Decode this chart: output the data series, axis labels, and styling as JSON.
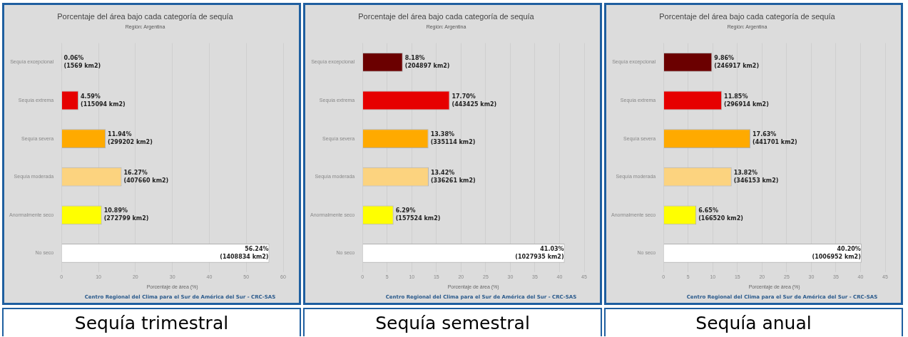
{
  "chart_data": [
    {
      "type": "bar",
      "orientation": "horizontal",
      "title": "Porcentaje del área bajo cada categoría de sequía",
      "subtitle": "Región: Argentina",
      "xlabel": "Porcentaje de área (%)",
      "categories": [
        "Sequía excepcional",
        "Sequía extrema",
        "Sequía severa",
        "Sequía moderada",
        "Anormalmente seco",
        "No seco"
      ],
      "values": [
        0.06,
        4.59,
        11.94,
        16.27,
        10.89,
        56.24
      ],
      "colors": [
        "#6b0000",
        "#e60000",
        "#ffaa00",
        "#fcd37f",
        "#ffff00",
        "#ffffff"
      ],
      "value_labels": [
        "0.06%\n(1569 km2)",
        "4.59%\n(115094 km2)",
        "11.94%\n(299202 km2)",
        "16.27%\n(407660 km2)",
        "10.89%\n(272799 km2)",
        "56.24%\n(1408834 km2)"
      ],
      "xlim": [
        0,
        60
      ],
      "xticks": [
        0,
        10,
        20,
        30,
        40,
        50,
        60
      ],
      "grid": "x",
      "legend": false,
      "annotations": [
        "Centro Regional del Clima para el Sur de América del Sur - CRC-SAS",
        "Sequía trimestral"
      ]
    },
    {
      "type": "bar",
      "orientation": "horizontal",
      "title": "Porcentaje del área bajo cada categoría de sequía",
      "subtitle": "Región: Argentina",
      "xlabel": "Porcentaje de área (%)",
      "categories": [
        "Sequía excepcional",
        "Sequía extrema",
        "Sequía severa",
        "Sequía moderada",
        "Anormalmente seco",
        "No seco"
      ],
      "values": [
        8.18,
        17.7,
        13.38,
        13.42,
        6.29,
        41.03
      ],
      "colors": [
        "#6b0000",
        "#e60000",
        "#ffaa00",
        "#fcd37f",
        "#ffff00",
        "#ffffff"
      ],
      "value_labels": [
        "8.18%\n(204897 km2)",
        "17.70%\n(443425 km2)",
        "13.38%\n(335114 km2)",
        "13.42%\n(336261 km2)",
        "6.29%\n(157524 km2)",
        "41.03%\n(1027935 km2)"
      ],
      "xlim": [
        0,
        45
      ],
      "xticks": [
        0,
        5,
        10,
        15,
        20,
        25,
        30,
        35,
        40,
        45
      ],
      "grid": "x",
      "legend": false,
      "annotations": [
        "Centro Regional del Clima para el Sur de América del Sur - CRC-SAS",
        "Sequía semestral"
      ]
    },
    {
      "type": "bar",
      "orientation": "horizontal",
      "title": "Porcentaje del área bajo cada categoría de sequía",
      "subtitle": "Región: Argentina",
      "xlabel": "Porcentaje de área (%)",
      "categories": [
        "Sequía excepcional",
        "Sequía extrema",
        "Sequía severa",
        "Sequía moderada",
        "Anormalmente seco",
        "No seco"
      ],
      "values": [
        9.86,
        11.85,
        17.63,
        13.82,
        6.65,
        40.2
      ],
      "colors": [
        "#6b0000",
        "#e60000",
        "#ffaa00",
        "#fcd37f",
        "#ffff00",
        "#ffffff"
      ],
      "value_labels": [
        "9.86%\n(246917 km2)",
        "11.85%\n(296914 km2)",
        "17.63%\n(441701 km2)",
        "13.82%\n(346153 km2)",
        "6.65%\n(166520 km2)",
        "40.20%\n(1006952 km2)"
      ],
      "xlim": [
        0,
        45
      ],
      "xticks": [
        0,
        5,
        10,
        15,
        20,
        25,
        30,
        35,
        40,
        45
      ],
      "grid": "x",
      "legend": false,
      "annotations": [
        "Centro Regional del Clima para el Sur de América del Sur - CRC-SAS",
        "Sequía anual"
      ]
    }
  ]
}
